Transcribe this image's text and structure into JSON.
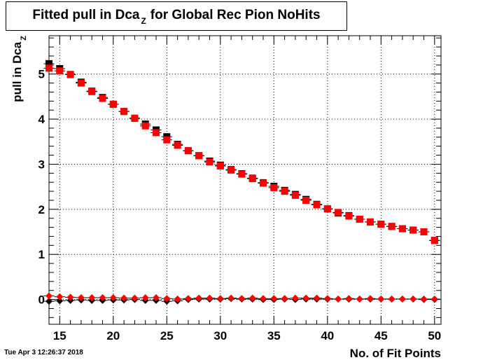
{
  "chart_data": {
    "type": "scatter",
    "title": "Fitted pull in Dca",
    "title_sub": "Z",
    "title_suffix": "for Global Rec Pion NoHits",
    "xlabel": "No. of Fit Points",
    "ylabel": "pull in Dca",
    "ylabel_sub": "Z",
    "xlim": [
      14,
      50.6
    ],
    "ylim": [
      -0.55,
      5.85
    ],
    "grid": true,
    "x_ticks": [
      15,
      20,
      25,
      30,
      35,
      40,
      45,
      50
    ],
    "y_ticks": [
      0,
      1,
      2,
      3,
      4,
      5
    ],
    "x": [
      14,
      15,
      16,
      17,
      18,
      19,
      20,
      21,
      22,
      23,
      24,
      25,
      26,
      27,
      28,
      29,
      30,
      31,
      32,
      33,
      34,
      35,
      36,
      37,
      38,
      39,
      40,
      41,
      42,
      43,
      44,
      45,
      46,
      47,
      48,
      49,
      50
    ],
    "series": [
      {
        "marker": "square",
        "color": "#000000",
        "values": [
          5.23,
          5.12,
          4.99,
          4.82,
          4.62,
          4.48,
          4.33,
          4.17,
          4.02,
          3.89,
          3.76,
          3.61,
          3.44,
          3.3,
          3.19,
          3.07,
          2.98,
          2.88,
          2.79,
          2.69,
          2.59,
          2.51,
          2.42,
          2.33,
          2.22,
          2.11,
          2.01,
          1.92,
          1.86,
          1.78,
          1.72,
          1.67,
          1.62,
          1.57,
          1.54,
          1.5,
          1.31
        ]
      },
      {
        "marker": "square",
        "color": "#ff0000",
        "values": [
          5.13,
          5.07,
          4.99,
          4.8,
          4.61,
          4.46,
          4.33,
          4.17,
          4.02,
          3.85,
          3.7,
          3.54,
          3.42,
          3.3,
          3.19,
          3.05,
          2.96,
          2.87,
          2.78,
          2.68,
          2.58,
          2.48,
          2.4,
          2.31,
          2.2,
          2.1,
          2.01,
          1.93,
          1.85,
          1.78,
          1.72,
          1.67,
          1.62,
          1.57,
          1.54,
          1.5,
          1.31
        ]
      },
      {
        "marker": "diamond",
        "color": "#000000",
        "values": [
          -0.04,
          -0.03,
          -0.02,
          -0.01,
          -0.02,
          -0.02,
          -0.01,
          -0.01,
          0.0,
          -0.02,
          -0.02,
          -0.04,
          -0.03,
          0.0,
          0.01,
          0.01,
          0.01,
          0.02,
          0.01,
          0.01,
          0.0,
          0.0,
          0.01,
          0.0,
          0.01,
          0.01,
          0.01,
          0.01,
          0.01,
          0.01,
          0.01,
          0.01,
          0.01,
          0.01,
          0.01,
          0.0,
          0.0
        ]
      },
      {
        "marker": "diamond",
        "color": "#ff0000",
        "values": [
          0.08,
          0.06,
          0.05,
          0.04,
          0.04,
          0.04,
          0.04,
          0.03,
          0.03,
          0.04,
          0.04,
          0.02,
          0.01,
          0.02,
          0.03,
          0.03,
          0.02,
          0.03,
          0.02,
          0.03,
          0.02,
          0.02,
          0.02,
          0.03,
          0.03,
          0.03,
          0.02,
          0.01,
          0.02,
          0.01,
          0.02,
          0.01,
          0.01,
          0.01,
          0.01,
          0.01,
          0.01
        ]
      }
    ]
  },
  "timestamp": "Tue Apr  3 12:26:37 2018"
}
